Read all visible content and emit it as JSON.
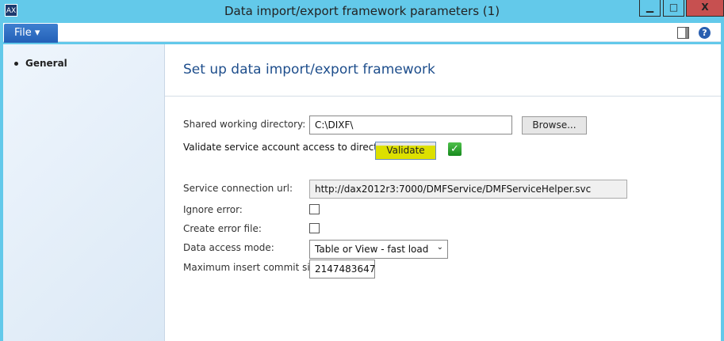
{
  "window": {
    "title": "Data import/export framework parameters (1)",
    "minimize": "▁",
    "maximize": "□",
    "close": "X"
  },
  "toolbar": {
    "file_label": "File ▾"
  },
  "sidebar": {
    "items": [
      {
        "label": "General"
      }
    ]
  },
  "main": {
    "header": "Set up data import/export framework",
    "shared_dir_label": "Shared working directory:",
    "shared_dir_value": "C:\\DIXF\\",
    "browse_label": "Browse...",
    "validate_text": "Validate service account access to directory",
    "validate_label": "Validate",
    "validate_highlight": "#dde000",
    "validated_icon": "green-check-icon",
    "service_url_label": "Service connection url:",
    "service_url_value": "http://dax2012r3:7000/DMFService/DMFServiceHelper.svc",
    "ignore_error_label": "Ignore error:",
    "ignore_error_checked": false,
    "create_error_file_label": "Create error file:",
    "create_error_file_checked": false,
    "data_access_label": "Data access mode:",
    "data_access_value": "Table or View - fast load",
    "max_commit_label": "Maximum insert commit size:",
    "max_commit_value": "2147483647"
  }
}
